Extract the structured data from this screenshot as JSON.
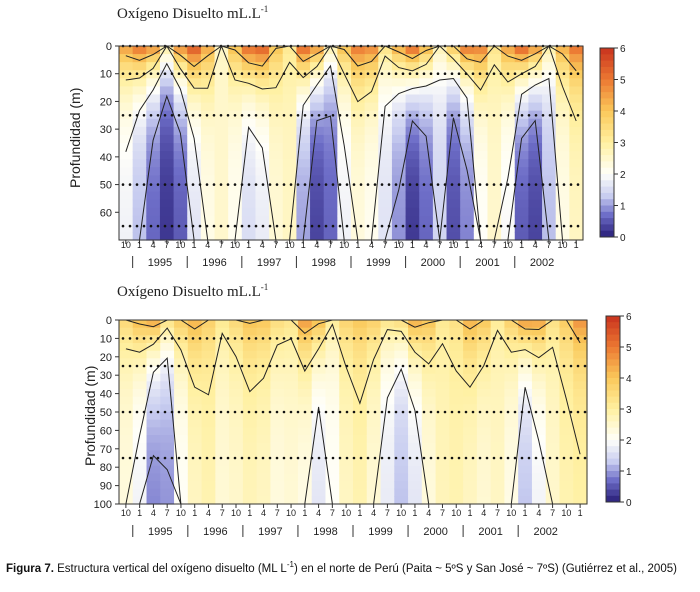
{
  "chart_data": [
    {
      "type": "heatmap",
      "title": "Oxígeno Disuelto mL.L",
      "title_sup": "-1",
      "ylabel": "Profundidad (m)",
      "ylim": [
        0,
        70
      ],
      "y_ticks": [
        0,
        10,
        20,
        30,
        40,
        50,
        60
      ],
      "x_month_ticks": [
        "10",
        "1",
        "4",
        "7",
        "10",
        "1",
        "4",
        "7",
        "10",
        "1",
        "4",
        "7",
        "10",
        "1",
        "4",
        "7",
        "10",
        "1",
        "4",
        "7",
        "10",
        "1",
        "4",
        "7",
        "10",
        "1",
        "4",
        "7",
        "10",
        "1",
        "4",
        "7",
        "10",
        "1"
      ],
      "x_years": [
        "1995",
        "1996",
        "1997",
        "1998",
        "1999",
        "2000",
        "2001",
        "2002"
      ],
      "colorbar": {
        "min": 0,
        "max": 6,
        "ticks": [
          0,
          1,
          2,
          3,
          4,
          5,
          6
        ]
      },
      "sample_depths": [
        0,
        10,
        25,
        50,
        65
      ],
      "surface_oxygen": [
        4.6,
        5.2,
        4.8,
        3.0,
        4.9,
        5.6,
        4.5,
        2.6,
        4.2,
        5.3,
        5.5,
        4.1,
        3.2,
        5.4,
        4.8,
        2.9,
        4.2,
        5.1,
        4.9,
        3.4,
        4.5,
        5.4,
        4.4,
        2.8,
        4.0,
        5.2,
        5.0,
        3.3,
        4.6,
        5.5,
        4.8,
        3.0,
        4.4,
        5.2
      ],
      "min_oxygen_depth_profile": [
        1.8,
        1.2,
        0.6,
        0.2,
        0.5,
        1.6,
        2.2,
        2.5,
        2.1,
        1.5,
        1.7,
        2.4,
        2.6,
        1.0,
        0.3,
        0.6,
        1.8,
        2.3,
        2.1,
        1.6,
        0.9,
        0.2,
        0.6,
        1.4,
        0.4,
        0.8,
        2.0,
        2.5,
        1.9,
        0.5,
        0.3,
        1.2,
        2.2,
        2.6
      ]
    },
    {
      "type": "heatmap",
      "title": "Oxígeno Disuelto mL.L",
      "title_sup": "-1",
      "ylabel": "Profundidad (m)",
      "ylim": [
        0,
        100
      ],
      "y_ticks": [
        0,
        10,
        20,
        30,
        40,
        50,
        60,
        70,
        80,
        90,
        100
      ],
      "x_month_ticks": [
        "10",
        "1",
        "4",
        "7",
        "10",
        "1",
        "4",
        "7",
        "10",
        "1",
        "4",
        "7",
        "10",
        "1",
        "4",
        "7",
        "10",
        "1",
        "4",
        "7",
        "10",
        "1",
        "4",
        "7",
        "10",
        "1",
        "4",
        "7",
        "10",
        "1",
        "4",
        "7",
        "10",
        "1"
      ],
      "x_years": [
        "1995",
        "1996",
        "1997",
        "1998",
        "1999",
        "2000",
        "2001",
        "2002"
      ],
      "colorbar": {
        "min": 0,
        "max": 6,
        "ticks": [
          0,
          1,
          2,
          3,
          4,
          5,
          6
        ]
      },
      "sample_depths": [
        10,
        25,
        50,
        75
      ],
      "surface_oxygen": [
        3.6,
        4.2,
        4.5,
        3.4,
        3.9,
        4.3,
        3.8,
        3.2,
        3.6,
        4.1,
        4.0,
        3.5,
        3.3,
        4.6,
        4.2,
        3.1,
        3.7,
        4.0,
        3.8,
        3.3,
        3.5,
        4.4,
        4.1,
        3.2,
        3.4,
        4.3,
        4.0,
        3.1,
        3.8,
        4.6,
        4.5,
        3.4,
        3.9,
        4.7
      ],
      "min_oxygen_depth_profile": [
        2.3,
        1.8,
        0.8,
        0.9,
        2.0,
        2.6,
        2.8,
        2.4,
        2.5,
        2.7,
        2.6,
        2.3,
        2.4,
        2.2,
        1.6,
        2.0,
        2.6,
        2.8,
        2.4,
        1.7,
        1.2,
        1.6,
        2.3,
        2.7,
        2.8,
        2.6,
        2.4,
        2.6,
        2.2,
        1.2,
        1.8,
        2.5,
        2.8,
        2.9
      ]
    }
  ],
  "caption": {
    "label": "Figura 7.",
    "text_a": " Estructura vertical del oxígeno disuelto (ML L",
    "sup": "-1",
    "text_b": ") en el norte de Perú (Paita ~ 5ºS y San José ~ 7ºS) (Gutiérrez et al., 2005)"
  }
}
